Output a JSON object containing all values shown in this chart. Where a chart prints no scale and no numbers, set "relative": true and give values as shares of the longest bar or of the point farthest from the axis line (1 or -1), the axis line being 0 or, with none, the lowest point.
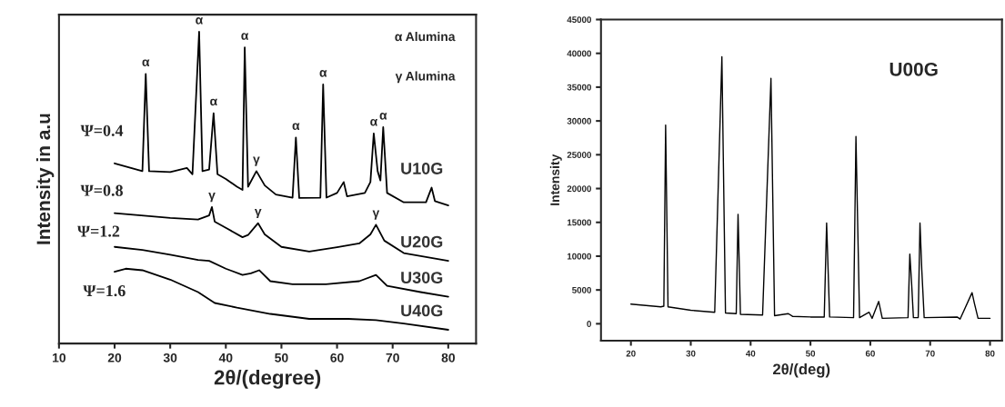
{
  "chart_data": [
    {
      "type": "line",
      "relative": true,
      "xlabel": "2θ/(degree)",
      "ylabel": "Intensity in a.u",
      "xlim": [
        10,
        85
      ],
      "xticks": [
        10,
        20,
        30,
        40,
        50,
        60,
        70,
        80
      ],
      "tick_labels": "x",
      "series": [
        {
          "name": "U10G",
          "color": "#000000",
          "x": [
            20,
            25,
            25.6,
            26.2,
            30,
            33,
            34,
            35.2,
            35.8,
            37,
            37.8,
            38.5,
            40,
            42,
            43,
            43.4,
            44,
            45.5,
            47,
            49,
            52,
            52.6,
            53.2,
            57,
            57.5,
            58.1,
            60,
            61.2,
            61.8,
            65,
            66,
            66.6,
            67.3,
            67.8,
            68.3,
            69,
            72,
            76,
            77,
            77.6,
            80
          ],
          "values": [
            0.578,
            0.553,
            0.865,
            0.553,
            0.55,
            0.563,
            0.543,
            1.0,
            0.553,
            0.558,
            0.739,
            0.543,
            0.528,
            0.503,
            0.493,
            0.95,
            0.503,
            0.553,
            0.507,
            0.478,
            0.468,
            0.661,
            0.467,
            0.468,
            0.831,
            0.468,
            0.483,
            0.518,
            0.472,
            0.483,
            0.518,
            0.674,
            0.553,
            0.523,
            0.694,
            0.483,
            0.453,
            0.453,
            0.5,
            0.457,
            0.443
          ]
        },
        {
          "name": "U20G",
          "color": "#000000",
          "x": [
            20,
            30,
            35,
            37,
            37.5,
            38,
            40,
            43,
            44,
            45.8,
            47,
            50,
            55,
            60,
            64,
            66,
            67,
            68.5,
            72,
            80
          ],
          "values": [
            0.418,
            0.403,
            0.398,
            0.411,
            0.438,
            0.391,
            0.371,
            0.341,
            0.348,
            0.386,
            0.35,
            0.31,
            0.295,
            0.309,
            0.321,
            0.35,
            0.381,
            0.33,
            0.29,
            0.265
          ]
        },
        {
          "name": "U30G",
          "color": "#000000",
          "x": [
            20,
            25,
            30,
            35,
            37,
            40,
            43,
            44.5,
            46,
            48,
            52,
            58,
            64,
            67,
            69,
            75,
            80
          ],
          "values": [
            0.31,
            0.3,
            0.285,
            0.268,
            0.265,
            0.24,
            0.22,
            0.225,
            0.235,
            0.2,
            0.19,
            0.19,
            0.2,
            0.22,
            0.185,
            0.165,
            0.15
          ]
        },
        {
          "name": "U40G",
          "color": "#000000",
          "x": [
            20,
            22,
            25,
            30,
            35,
            38,
            42,
            48,
            55,
            62,
            67,
            72,
            80
          ],
          "values": [
            0.23,
            0.24,
            0.235,
            0.205,
            0.165,
            0.13,
            0.115,
            0.095,
            0.079,
            0.079,
            0.075,
            0.064,
            0.044
          ]
        }
      ],
      "annotations": [
        "α Alumina",
        "γ Alumina",
        "Ψ=0.4",
        "Ψ=0.8",
        "Ψ=1.2",
        "Ψ=1.6",
        {
          "text": "α",
          "x": 25.6,
          "y": 0.865
        },
        {
          "text": "α",
          "x": 35.2,
          "y": 1.0
        },
        {
          "text": "α",
          "x": 37.8,
          "y": 0.739
        },
        {
          "text": "α",
          "x": 43.4,
          "y": 0.95
        },
        {
          "text": "α",
          "x": 52.6,
          "y": 0.661
        },
        {
          "text": "α",
          "x": 57.5,
          "y": 0.831
        },
        {
          "text": "α",
          "x": 66.6,
          "y": 0.674
        },
        {
          "text": "α",
          "x": 68.3,
          "y": 0.694
        },
        {
          "text": "γ",
          "x": 45.5,
          "y": 0.553
        },
        {
          "text": "γ",
          "x": 37.5,
          "y": 0.438
        },
        {
          "text": "γ",
          "x": 45.8,
          "y": 0.386
        },
        {
          "text": "γ",
          "x": 67,
          "y": 0.381
        }
      ],
      "legend": false,
      "grid": false
    },
    {
      "type": "line",
      "xlabel": "2θ/(deg)",
      "ylabel": "Intensity",
      "xlim": [
        15,
        82
      ],
      "xticks": [
        20,
        30,
        40,
        50,
        60,
        70,
        80
      ],
      "ylim": [
        -2500,
        45000
      ],
      "yticks": [
        0,
        5000,
        10000,
        15000,
        20000,
        25000,
        30000,
        35000,
        40000,
        45000
      ],
      "series": [
        {
          "color": "#000000",
          "x": [
            20,
            25,
            25.5,
            25.8,
            26.2,
            30,
            34,
            35.2,
            35.8,
            37.6,
            37.9,
            38.3,
            42,
            43.4,
            44,
            46.3,
            47,
            50,
            52.3,
            52.7,
            53.2,
            57.2,
            57.6,
            58.2,
            59.8,
            60.3,
            61.4,
            62,
            66.3,
            66.6,
            66.9,
            67.2,
            68,
            68.3,
            68.6,
            69,
            74.5,
            75,
            77,
            77.4,
            78,
            80
          ],
          "values": [
            2900,
            2500,
            2600,
            29400,
            2500,
            2000,
            1700,
            39500,
            1600,
            1500,
            16200,
            1400,
            1300,
            36300,
            1200,
            1500,
            1100,
            1000,
            1000,
            14900,
            1000,
            900,
            27700,
            900,
            1700,
            800,
            3300,
            800,
            900,
            10300,
            6000,
            900,
            900,
            14900,
            8000,
            900,
            1000,
            700,
            4600,
            3000,
            800,
            800
          ]
        }
      ],
      "annotations": [
        "U00G"
      ],
      "legend": false,
      "grid": false
    }
  ]
}
